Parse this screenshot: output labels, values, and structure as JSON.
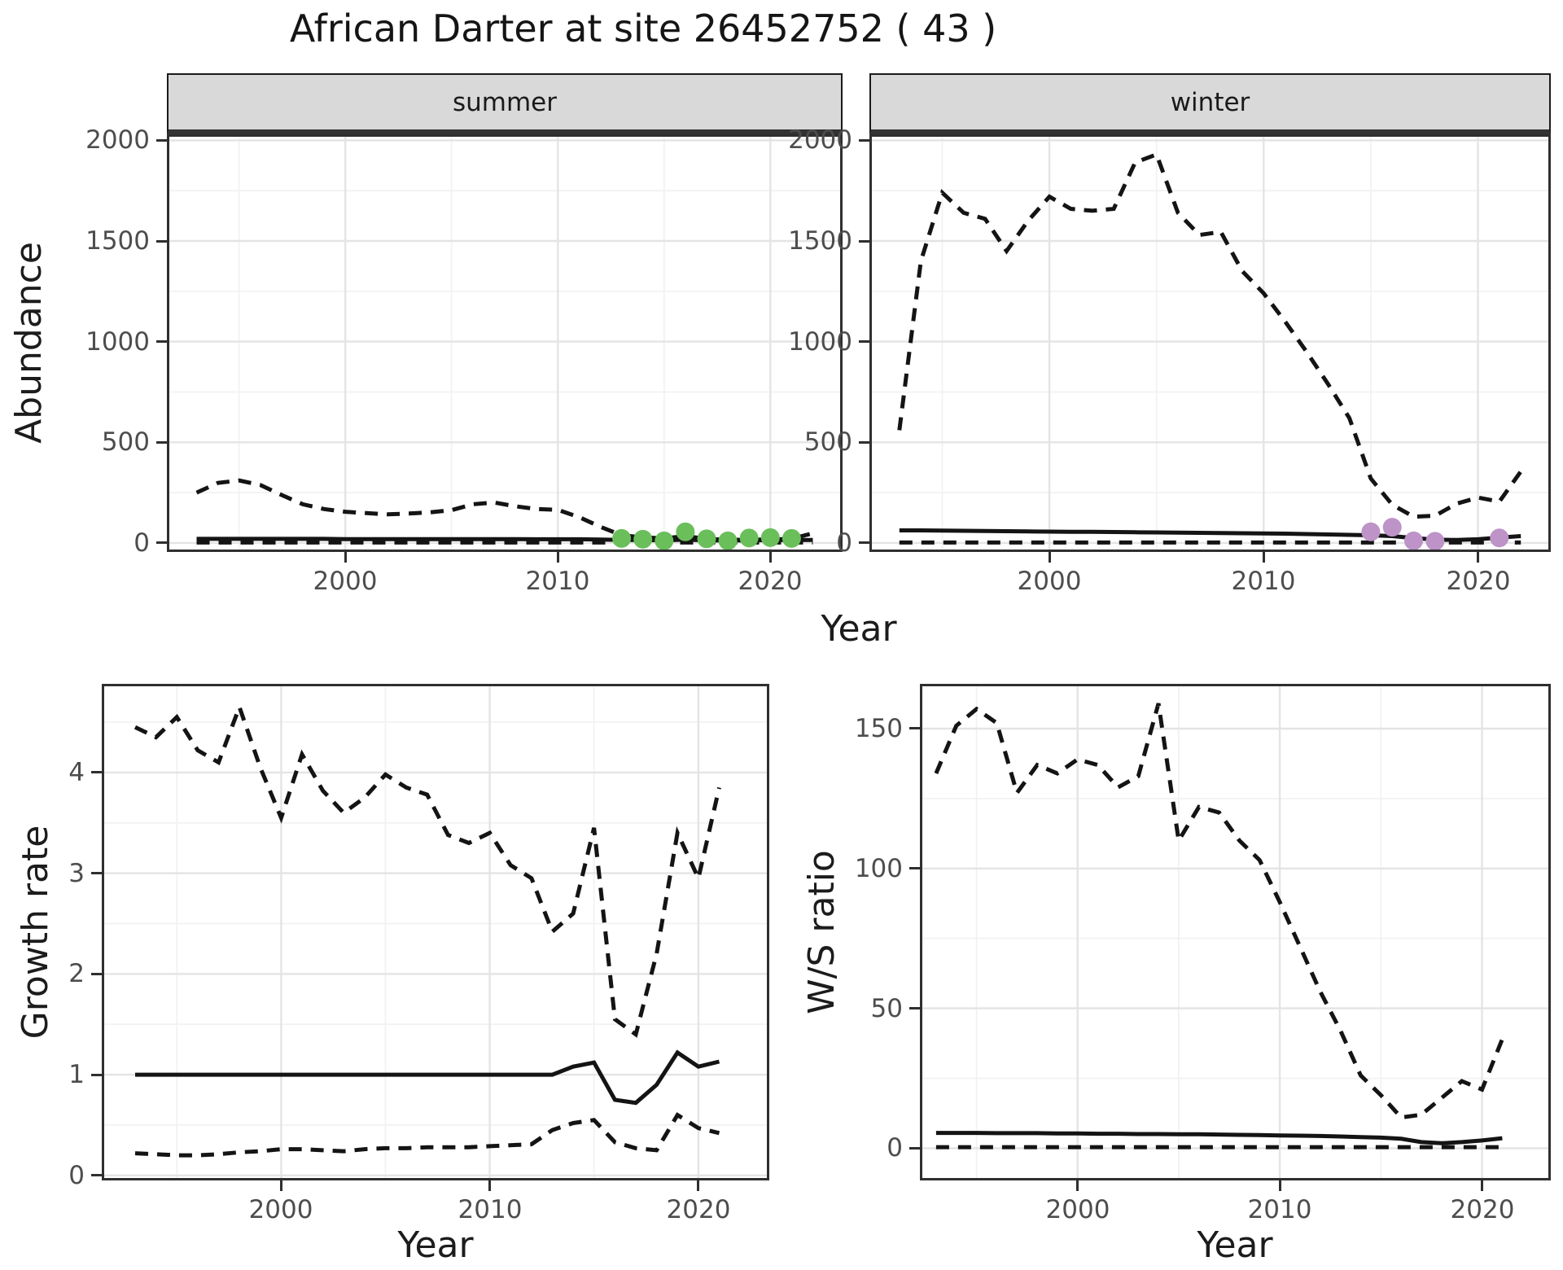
{
  "title": "African Darter at site 26452752 ( 43 )",
  "colors": {
    "line": "#141414",
    "grid_major": "#e4e4e4",
    "grid_minor": "#f2f2f2",
    "panel_border": "#2f2f2f",
    "strip_bg": "#d9d9d9",
    "tick_text": "#4d4d4d",
    "title_text": "#151515",
    "summer_points": "#6abf5b",
    "winter_points": "#bd93c8"
  },
  "chart_data": [
    {
      "id": "abundance-summer",
      "type": "line",
      "strip": "summer",
      "xlabel": "Year",
      "ylabel": "Abundance",
      "xlim": [
        1991.6,
        2023.4
      ],
      "ylim": [
        -45,
        2030
      ],
      "xticks": [
        2000,
        2010,
        2020
      ],
      "xticks_minor": [
        1995,
        2005,
        2015
      ],
      "yticks": [
        0,
        500,
        1000,
        1500,
        2000
      ],
      "yticks_minor": [
        250,
        750,
        1250,
        1750
      ],
      "grid": true,
      "legend": "none",
      "series": [
        {
          "name": "upper-credible-interval",
          "style": "dashed",
          "x": [
            1993,
            1994,
            1995,
            1996,
            1997,
            1998,
            1999,
            2000,
            2001,
            2002,
            2003,
            2004,
            2005,
            2006,
            2007,
            2008,
            2009,
            2010,
            2011,
            2012,
            2013,
            2014,
            2015,
            2016,
            2017,
            2018,
            2019,
            2020,
            2021,
            2022
          ],
          "y": [
            250,
            298,
            310,
            288,
            238,
            192,
            168,
            155,
            148,
            142,
            146,
            152,
            163,
            192,
            201,
            182,
            168,
            164,
            128,
            80,
            38,
            28,
            22,
            34,
            20,
            15,
            16,
            17,
            20,
            48
          ]
        },
        {
          "name": "median",
          "style": "solid",
          "x": [
            1993,
            1994,
            1995,
            1996,
            1997,
            1998,
            1999,
            2000,
            2001,
            2002,
            2003,
            2004,
            2005,
            2006,
            2007,
            2008,
            2009,
            2010,
            2011,
            2012,
            2013,
            2014,
            2015,
            2016,
            2017,
            2018,
            2019,
            2020,
            2021,
            2022
          ],
          "y": [
            20,
            20,
            20,
            20,
            20,
            20,
            20,
            19,
            19,
            19,
            19,
            19,
            19,
            19,
            19,
            19,
            18,
            18,
            18,
            17,
            15,
            14,
            13,
            16,
            13,
            12,
            13,
            14,
            14,
            15
          ]
        },
        {
          "name": "lower-credible-interval",
          "style": "dashed",
          "x": [
            1993,
            1994,
            1995,
            1996,
            1997,
            1998,
            1999,
            2000,
            2001,
            2002,
            2003,
            2004,
            2005,
            2006,
            2007,
            2008,
            2009,
            2010,
            2011,
            2012,
            2013,
            2014,
            2015,
            2016,
            2017,
            2018,
            2019,
            2020,
            2021,
            2022
          ],
          "y": [
            2,
            2,
            2,
            2,
            2,
            2,
            2,
            2,
            2,
            2,
            2,
            2,
            2,
            2,
            2,
            2,
            2,
            2,
            2,
            2,
            2,
            2,
            2,
            2,
            2,
            2,
            2,
            2,
            2,
            2
          ]
        },
        {
          "name": "observed-counts",
          "style": "points",
          "color": "#6abf5b",
          "x": [
            2013,
            2014,
            2015,
            2016,
            2017,
            2018,
            2019,
            2020,
            2021
          ],
          "y": [
            22,
            18,
            10,
            55,
            20,
            10,
            24,
            26,
            22
          ]
        }
      ]
    },
    {
      "id": "abundance-winter",
      "type": "line",
      "strip": "winter",
      "xlabel": "Year",
      "ylabel": "Abundance",
      "xlim": [
        1991.6,
        2023.4
      ],
      "ylim": [
        -45,
        2030
      ],
      "xticks": [
        2000,
        2010,
        2020
      ],
      "xticks_minor": [
        1995,
        2005,
        2015
      ],
      "yticks": [
        0,
        500,
        1000,
        1500,
        2000
      ],
      "yticks_minor": [
        250,
        750,
        1250,
        1750
      ],
      "grid": true,
      "legend": "none",
      "series": [
        {
          "name": "upper-credible-interval",
          "style": "dashed",
          "x": [
            1993,
            1994,
            1995,
            1996,
            1997,
            1998,
            1999,
            2000,
            2001,
            2002,
            2003,
            2004,
            2005,
            2006,
            2007,
            2008,
            2009,
            2010,
            2011,
            2012,
            2013,
            2014,
            2015,
            2016,
            2017,
            2018,
            2019,
            2020,
            2021,
            2022
          ],
          "y": [
            560,
            1400,
            1740,
            1640,
            1610,
            1450,
            1600,
            1720,
            1660,
            1650,
            1660,
            1890,
            1930,
            1640,
            1530,
            1545,
            1350,
            1240,
            1100,
            950,
            790,
            620,
            320,
            190,
            130,
            135,
            195,
            225,
            205,
            355
          ]
        },
        {
          "name": "median",
          "style": "solid",
          "x": [
            1993,
            1994,
            1995,
            1996,
            1997,
            1998,
            1999,
            2000,
            2001,
            2002,
            2003,
            2004,
            2005,
            2006,
            2007,
            2008,
            2009,
            2010,
            2011,
            2012,
            2013,
            2014,
            2015,
            2016,
            2017,
            2018,
            2019,
            2020,
            2021,
            2022
          ],
          "y": [
            62,
            62,
            61,
            60,
            59,
            58,
            57,
            56,
            55,
            55,
            54,
            53,
            52,
            51,
            50,
            49,
            48,
            47,
            46,
            44,
            42,
            40,
            38,
            34,
            24,
            16,
            15,
            18,
            26,
            34
          ]
        },
        {
          "name": "lower-credible-interval",
          "style": "dashed",
          "x": [
            1993,
            1994,
            1995,
            1996,
            1997,
            1998,
            1999,
            2000,
            2001,
            2002,
            2003,
            2004,
            2005,
            2006,
            2007,
            2008,
            2009,
            2010,
            2011,
            2012,
            2013,
            2014,
            2015,
            2016,
            2017,
            2018,
            2019,
            2020,
            2021,
            2022
          ],
          "y": [
            2,
            2,
            2,
            2,
            2,
            2,
            2,
            2,
            2,
            2,
            2,
            2,
            2,
            2,
            2,
            2,
            2,
            2,
            2,
            2,
            2,
            2,
            2,
            2,
            2,
            2,
            2,
            2,
            2,
            2
          ]
        },
        {
          "name": "observed-counts",
          "style": "points",
          "color": "#bd93c8",
          "x": [
            2015,
            2016,
            2017,
            2018,
            2021
          ],
          "y": [
            55,
            78,
            10,
            8,
            25
          ]
        }
      ]
    },
    {
      "id": "growth-rate",
      "type": "line",
      "strip": null,
      "xlabel": "Year",
      "ylabel": "Growth rate",
      "xlim": [
        1991.4,
        2023.4
      ],
      "ylim": [
        -0.05,
        4.88
      ],
      "xticks": [
        2000,
        2010,
        2020
      ],
      "xticks_minor": [
        1995,
        2005,
        2015
      ],
      "yticks": [
        0,
        1,
        2,
        3,
        4
      ],
      "yticks_minor": [
        0.5,
        1.5,
        2.5,
        3.5,
        4.5
      ],
      "grid": true,
      "legend": "none",
      "series": [
        {
          "name": "upper-credible-interval",
          "style": "dashed",
          "x": [
            1993,
            1994,
            1995,
            1996,
            1997,
            1998,
            1999,
            2000,
            2001,
            2002,
            2003,
            2004,
            2005,
            2006,
            2007,
            2008,
            2009,
            2010,
            2011,
            2012,
            2013,
            2014,
            2015,
            2016,
            2017,
            2018,
            2019,
            2020,
            2021
          ],
          "y": [
            4.45,
            4.35,
            4.55,
            4.22,
            4.1,
            4.65,
            4.05,
            3.55,
            4.18,
            3.82,
            3.6,
            3.75,
            3.98,
            3.85,
            3.78,
            3.38,
            3.3,
            3.4,
            3.08,
            2.95,
            2.42,
            2.6,
            3.45,
            1.55,
            1.4,
            2.2,
            3.4,
            2.95,
            3.85
          ]
        },
        {
          "name": "median",
          "style": "solid",
          "x": [
            1993,
            1994,
            1995,
            1996,
            1997,
            1998,
            1999,
            2000,
            2001,
            2002,
            2003,
            2004,
            2005,
            2006,
            2007,
            2008,
            2009,
            2010,
            2011,
            2012,
            2013,
            2014,
            2015,
            2016,
            2017,
            2018,
            2019,
            2020,
            2021
          ],
          "y": [
            1,
            1,
            1,
            1,
            1,
            1,
            1,
            1,
            1,
            1,
            1,
            1,
            1,
            1,
            1,
            1,
            1,
            1,
            1,
            1,
            1,
            1.08,
            1.12,
            0.75,
            0.72,
            0.9,
            1.22,
            1.08,
            1.13
          ]
        },
        {
          "name": "lower-credible-interval",
          "style": "dashed",
          "x": [
            1993,
            1994,
            1995,
            1996,
            1997,
            1998,
            1999,
            2000,
            2001,
            2002,
            2003,
            2004,
            2005,
            2006,
            2007,
            2008,
            2009,
            2010,
            2011,
            2012,
            2013,
            2014,
            2015,
            2016,
            2017,
            2018,
            2019,
            2020,
            2021
          ],
          "y": [
            0.22,
            0.21,
            0.2,
            0.2,
            0.21,
            0.23,
            0.24,
            0.26,
            0.26,
            0.25,
            0.24,
            0.26,
            0.27,
            0.27,
            0.28,
            0.28,
            0.28,
            0.29,
            0.3,
            0.31,
            0.45,
            0.52,
            0.55,
            0.33,
            0.27,
            0.25,
            0.6,
            0.47,
            0.42
          ]
        }
      ]
    },
    {
      "id": "ws-ratio",
      "type": "line",
      "strip": null,
      "xlabel": "Year",
      "ylabel": "W/S ratio",
      "xlim": [
        1992.2,
        2023.4
      ],
      "ylim": [
        -11.5,
        166
      ],
      "xticks": [
        2000,
        2010,
        2020
      ],
      "xticks_minor": [
        1995,
        2005,
        2015
      ],
      "yticks": [
        0,
        50,
        100,
        150
      ],
      "yticks_minor": [
        25,
        75,
        125
      ],
      "grid": true,
      "legend": "none",
      "series": [
        {
          "name": "upper-credible-interval",
          "style": "dashed",
          "x": [
            1993,
            1994,
            1995,
            1996,
            1997,
            1998,
            1999,
            2000,
            2001,
            2002,
            2003,
            2004,
            2005,
            2006,
            2007,
            2008,
            2009,
            2010,
            2011,
            2012,
            2013,
            2014,
            2015,
            2016,
            2017,
            2018,
            2019,
            2020,
            2021
          ],
          "y": [
            134,
            151,
            157,
            152,
            127,
            137,
            134,
            139,
            137,
            129,
            133,
            159,
            110,
            122,
            120,
            110,
            103,
            88,
            72,
            56,
            42,
            26,
            19,
            11,
            12,
            18,
            24,
            21,
            39
          ]
        },
        {
          "name": "median",
          "style": "solid",
          "x": [
            1993,
            1994,
            1995,
            1996,
            1997,
            1998,
            1999,
            2000,
            2001,
            2002,
            2003,
            2004,
            2005,
            2006,
            2007,
            2008,
            2009,
            2010,
            2011,
            2012,
            2013,
            2014,
            2015,
            2016,
            2017,
            2018,
            2019,
            2020,
            2021
          ],
          "y": [
            5.5,
            5.5,
            5.5,
            5.4,
            5.4,
            5.4,
            5.3,
            5.3,
            5.2,
            5.2,
            5.1,
            5.1,
            5,
            5,
            4.9,
            4.8,
            4.7,
            4.6,
            4.5,
            4.4,
            4.2,
            4,
            3.8,
            3.4,
            2.2,
            1.8,
            2.2,
            2.8,
            3.6
          ]
        },
        {
          "name": "lower-credible-interval",
          "style": "dashed",
          "x": [
            1993,
            1994,
            1995,
            1996,
            1997,
            1998,
            1999,
            2000,
            2001,
            2002,
            2003,
            2004,
            2005,
            2006,
            2007,
            2008,
            2009,
            2010,
            2011,
            2012,
            2013,
            2014,
            2015,
            2016,
            2017,
            2018,
            2019,
            2020,
            2021
          ],
          "y": [
            0.4,
            0.4,
            0.4,
            0.4,
            0.4,
            0.4,
            0.4,
            0.4,
            0.4,
            0.4,
            0.4,
            0.4,
            0.4,
            0.4,
            0.4,
            0.4,
            0.4,
            0.4,
            0.4,
            0.4,
            0.4,
            0.4,
            0.4,
            0.4,
            0.4,
            0.4,
            0.4,
            0.4,
            0.4
          ]
        }
      ]
    }
  ]
}
